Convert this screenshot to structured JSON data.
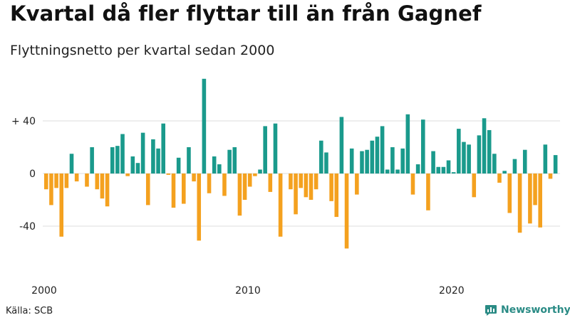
{
  "header": {
    "title": "Kvartal då fler flyttar till än från Gagnef",
    "subtitle": "Flyttningsnetto per kvartal sedan 2000"
  },
  "footer": {
    "source": "Källa: SCB",
    "brand": "Newsworthy"
  },
  "colors": {
    "positive": "#1a9a8c",
    "negative": "#f4a11f",
    "gridline": "#dddddd",
    "brand": "#2a8b85"
  },
  "chart_data": {
    "type": "bar",
    "title": "Kvartal då fler flyttar till än från Gagnef",
    "subtitle": "Flyttningsnetto per kvartal sedan 2000",
    "xlabel": "",
    "ylabel": "",
    "x_ticks": [
      {
        "label": "2000",
        "index": 0
      },
      {
        "label": "2010",
        "index": 40
      },
      {
        "label": "2020",
        "index": 80
      }
    ],
    "y_ticks": [
      {
        "label": "+ 40",
        "value": 40
      },
      {
        "label": "0",
        "value": 0
      },
      {
        "label": "-40",
        "value": -40
      }
    ],
    "ylim": [
      -72,
      72
    ],
    "grid": true,
    "values": [
      -12,
      -24,
      -11,
      -48,
      -11,
      15,
      -6,
      0,
      -10,
      20,
      -12,
      -19,
      -25,
      20,
      21,
      30,
      -2,
      13,
      8,
      31,
      -24,
      26,
      19,
      38,
      -1,
      -26,
      12,
      -23,
      20,
      -6,
      -51,
      72,
      -15,
      13,
      7,
      -17,
      18,
      20,
      -32,
      -20,
      -10,
      -2,
      3,
      36,
      -14,
      38,
      -48,
      0,
      -12,
      -31,
      -11,
      -18,
      -20,
      -12,
      25,
      16,
      -21,
      -33,
      43,
      -57,
      19,
      -16,
      17,
      18,
      25,
      28,
      36,
      3,
      20,
      3,
      19,
      45,
      -16,
      7,
      41,
      -28,
      17,
      5,
      5,
      10,
      1,
      34,
      24,
      22,
      -18,
      29,
      42,
      33,
      15,
      -7,
      2,
      -30,
      11,
      -45,
      18,
      -38,
      -24,
      -41,
      22,
      -4,
      14
    ]
  }
}
